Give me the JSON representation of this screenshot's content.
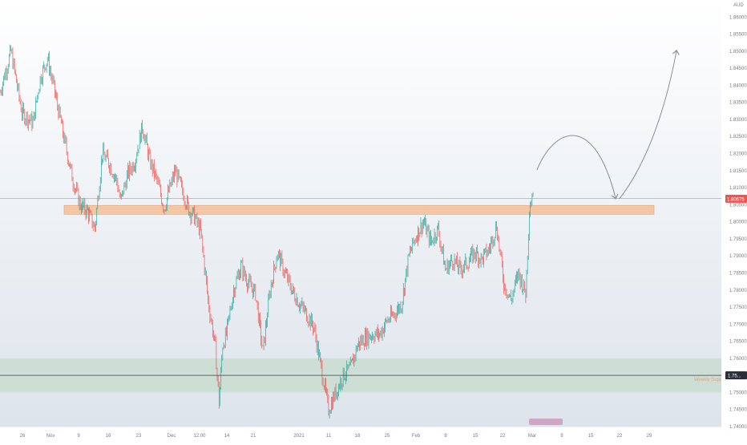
{
  "chart_data": {
    "type": "candlestick",
    "symbol_unit": "AUD",
    "ylim": [
      1.74,
      1.865
    ],
    "y_ticks": [
      "1.86000",
      "1.85500",
      "1.85000",
      "1.84500",
      "1.84000",
      "1.83500",
      "1.83000",
      "1.82500",
      "1.82000",
      "1.81500",
      "1.81000",
      "1.80500",
      "1.80000",
      "1.79500",
      "1.79000",
      "1.78500",
      "1.78000",
      "1.77500",
      "1.77000",
      "1.76500",
      "1.76000",
      "1.75500",
      "1.75000",
      "1.74500",
      "1.74000"
    ],
    "x_ticks": [
      "26",
      "Nov",
      "9",
      "16",
      "23",
      "Dec",
      "12:00",
      "14",
      "21",
      "2021",
      "11",
      "18",
      "25",
      "Feb",
      "8",
      "15",
      "22",
      "Mar",
      "8",
      "15",
      "22",
      "29"
    ],
    "last_price": "1.80675",
    "lower_level_price": "1.75...",
    "zone_label": "Weekly Support",
    "colors": {
      "up": "#26a69a",
      "down": "#ef5350",
      "resistance_zone": "#f3c6a5",
      "support_zone": "#c9dccf",
      "background_top": "#ffffff",
      "background_bottom": "#dfe6ee"
    },
    "series": [
      {
        "keypoints": [
          [
            0,
            1.838
          ],
          [
            1,
            1.842
          ],
          [
            3,
            1.85
          ],
          [
            6,
            1.832
          ],
          [
            9,
            1.829
          ],
          [
            11,
            1.842
          ],
          [
            13,
            1.848
          ],
          [
            15,
            1.838
          ],
          [
            18,
            1.822
          ],
          [
            20,
            1.812
          ],
          [
            22,
            1.805
          ],
          [
            24,
            1.803
          ],
          [
            26,
            1.798
          ],
          [
            28,
            1.82
          ],
          [
            30,
            1.817
          ],
          [
            32,
            1.812
          ],
          [
            33,
            1.806
          ],
          [
            35,
            1.814
          ],
          [
            37,
            1.818
          ],
          [
            39,
            1.828
          ],
          [
            41,
            1.818
          ],
          [
            43,
            1.812
          ],
          [
            45,
            1.804
          ],
          [
            46,
            1.808
          ],
          [
            48,
            1.815
          ],
          [
            50,
            1.809
          ],
          [
            52,
            1.803
          ],
          [
            53,
            1.802
          ],
          [
            55,
            1.797
          ],
          [
            57,
            1.777
          ],
          [
            59,
            1.763
          ],
          [
            60,
            1.747
          ],
          [
            61,
            1.764
          ],
          [
            62,
            1.767
          ],
          [
            64,
            1.78
          ],
          [
            66,
            1.787
          ],
          [
            68,
            1.782
          ],
          [
            70,
            1.779
          ],
          [
            72,
            1.762
          ],
          [
            74,
            1.78
          ],
          [
            76,
            1.791
          ],
          [
            78,
            1.785
          ],
          [
            80,
            1.78
          ],
          [
            82,
            1.776
          ],
          [
            84,
            1.773
          ],
          [
            86,
            1.769
          ],
          [
            88,
            1.757
          ],
          [
            90,
            1.745
          ],
          [
            92,
            1.75
          ],
          [
            94,
            1.755
          ],
          [
            96,
            1.757
          ],
          [
            98,
            1.764
          ],
          [
            100,
            1.766
          ],
          [
            102,
            1.767
          ],
          [
            104,
            1.767
          ],
          [
            106,
            1.771
          ],
          [
            108,
            1.773
          ],
          [
            110,
            1.776
          ],
          [
            112,
            1.79
          ],
          [
            114,
            1.796
          ],
          [
            116,
            1.8
          ],
          [
            118,
            1.794
          ],
          [
            120,
            1.798
          ],
          [
            122,
            1.786
          ],
          [
            124,
            1.789
          ],
          [
            126,
            1.786
          ],
          [
            128,
            1.788
          ],
          [
            130,
            1.791
          ],
          [
            132,
            1.789
          ],
          [
            134,
            1.792
          ],
          [
            136,
            1.799
          ],
          [
            138,
            1.782
          ],
          [
            140,
            1.777
          ],
          [
            142,
            1.785
          ],
          [
            144,
            1.779
          ],
          [
            145,
            1.804
          ],
          [
            146,
            1.809
          ]
        ]
      }
    ],
    "annotations": {
      "resistance_zone": [
        1.8022,
        1.8048
      ],
      "support_zone": [
        1.75,
        1.76
      ],
      "horizontal_line": 1.8068,
      "lower_line": 1.755,
      "projection": "up-down-up arrow from ~1.8150 to ~1.8500"
    }
  }
}
